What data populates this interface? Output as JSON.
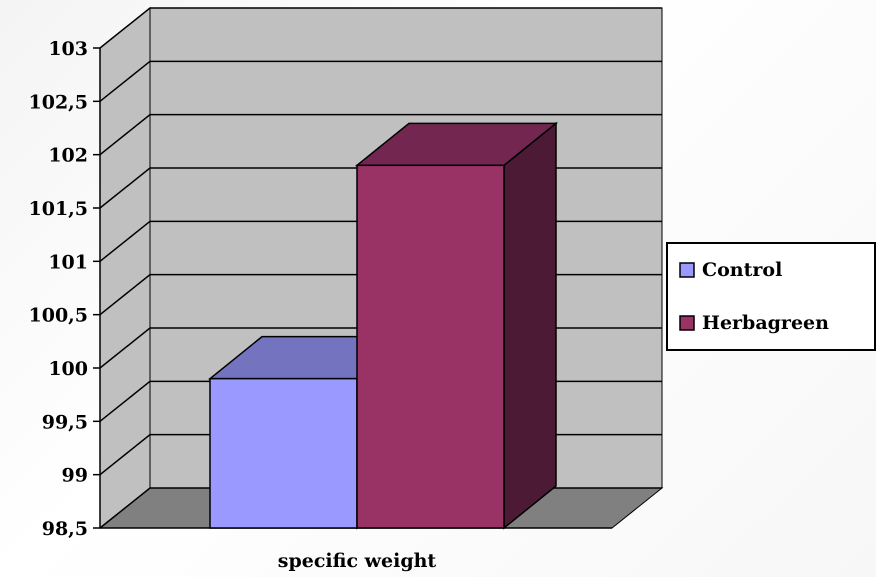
{
  "chart_data": {
    "type": "bar",
    "categories": [
      "specific weight"
    ],
    "series": [
      {
        "name": "Control",
        "values": [
          99.9
        ]
      },
      {
        "name": "Herbagreen",
        "values": [
          101.9
        ]
      }
    ],
    "ylim": [
      98.5,
      103
    ],
    "yticks": [
      "98,5",
      "99",
      "99,5",
      "100",
      "100,5",
      "101",
      "101,5",
      "102",
      "102,5",
      "103"
    ],
    "xlabel": "specific weight",
    "ylabel": "",
    "title": "",
    "grid": true,
    "legend": "right",
    "style": "3d",
    "colors": {
      "wall": "#c0c0c0",
      "floor": "#808080",
      "control_front": "#9999ff",
      "control_top": "#7373bf",
      "herbagreen_front": "#993366",
      "herbagreen_top": "#732650",
      "herbagreen_side": "#4d1a35"
    }
  }
}
